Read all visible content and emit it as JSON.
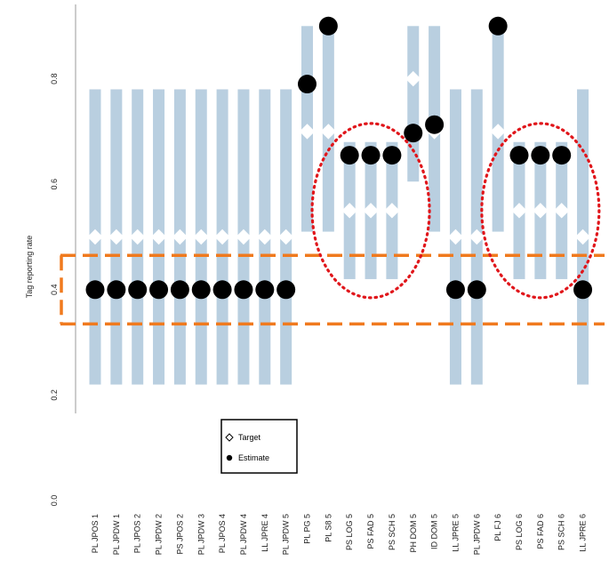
{
  "chart_data": {
    "type": "scatter",
    "title": "",
    "xlabel": "",
    "ylabel": "Tag reporting rate",
    "ylim": [
      0.0,
      0.9
    ],
    "y_ticks": [
      "0.0",
      "0.2",
      "0.4",
      "0.6",
      "0.8"
    ],
    "grid": false,
    "categories": [
      "PL JPOS 1",
      "PL JPDW 1",
      "PL JPOS 2",
      "PL JPDW 2",
      "PS JPOS 2",
      "PL JPDW 3",
      "PL JPOS 4",
      "PL JPDW 4",
      "LL JPRE 4",
      "PL JPDW 5",
      "PL PG 5",
      "PL S8 5",
      "PS LOG 5",
      "PS FAD 5",
      "PS SCH 5",
      "PH DOM 5",
      "ID DOM 5",
      "LL JPRE 5",
      "PL JPDW 6",
      "PL FJ 6",
      "PS LOG 6",
      "PS FAD 6",
      "PS SCH 6",
      "LL JPRE 6"
    ],
    "series": [
      {
        "name": "Target",
        "marker": "diamond-open",
        "values": [
          0.5,
          0.5,
          0.5,
          0.5,
          0.5,
          0.5,
          0.5,
          0.5,
          0.5,
          0.5,
          0.7,
          0.7,
          0.55,
          0.55,
          0.55,
          0.8,
          0.7,
          0.5,
          0.5,
          0.7,
          0.55,
          0.55,
          0.55,
          0.5
        ]
      },
      {
        "name": "Estimate",
        "marker": "filled-circle",
        "values": [
          0.4,
          0.4,
          0.4,
          0.4,
          0.4,
          0.4,
          0.4,
          0.4,
          0.4,
          0.4,
          0.79,
          0.9,
          0.655,
          0.655,
          0.655,
          0.697,
          0.713,
          0.4,
          0.4,
          0.9,
          0.655,
          0.655,
          0.655,
          0.4
        ]
      }
    ],
    "intervals": [
      [
        0.22,
        0.78
      ],
      [
        0.22,
        0.78
      ],
      [
        0.22,
        0.78
      ],
      [
        0.22,
        0.78
      ],
      [
        0.22,
        0.78
      ],
      [
        0.22,
        0.78
      ],
      [
        0.22,
        0.78
      ],
      [
        0.22,
        0.78
      ],
      [
        0.22,
        0.78
      ],
      [
        0.22,
        0.78
      ],
      [
        0.51,
        0.9
      ],
      [
        0.51,
        0.9
      ],
      [
        0.42,
        0.68
      ],
      [
        0.42,
        0.68
      ],
      [
        0.42,
        0.68
      ],
      [
        0.605,
        0.9
      ],
      [
        0.51,
        0.9
      ],
      [
        0.22,
        0.78
      ],
      [
        0.22,
        0.78
      ],
      [
        0.51,
        0.9
      ],
      [
        0.42,
        0.68
      ],
      [
        0.42,
        0.68
      ],
      [
        0.42,
        0.68
      ],
      [
        0.22,
        0.78
      ]
    ],
    "interval_color": "#b9cfe0",
    "highlight_band": [
      0.335,
      0.465
    ],
    "highlight_band_color": "#f07a1e",
    "highlight_ellipse_groups": [
      [
        "PS LOG 5",
        "PS FAD 5",
        "PS SCH 5"
      ],
      [
        "PS LOG 6",
        "PS FAD 6",
        "PS SCH 6"
      ]
    ],
    "highlight_ellipse_color": "#e0161b",
    "legend": {
      "position": "bottom-left",
      "entries": [
        "Target",
        "Estimate"
      ]
    }
  }
}
